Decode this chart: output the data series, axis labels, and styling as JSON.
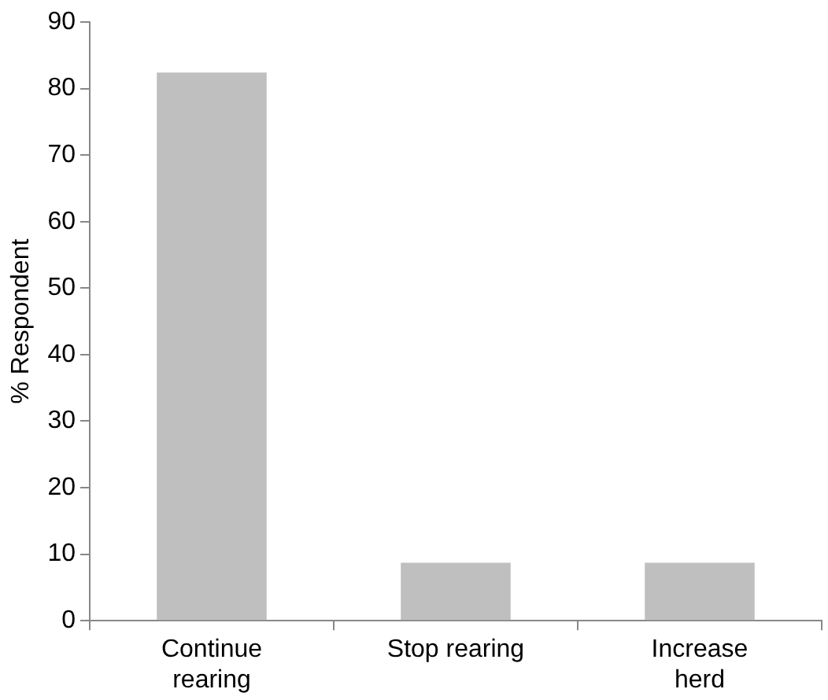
{
  "chart_data": {
    "type": "bar",
    "ylabel": "% Respondent",
    "categories": [
      "Continue rearing",
      "Stop rearing",
      "Increase herd"
    ],
    "values": [
      82.4,
      8.7,
      8.7
    ],
    "color": "#bfbfbf",
    "ylim": [
      0,
      90
    ],
    "yticks": [
      0,
      10,
      20,
      30,
      40,
      50,
      60,
      70,
      80,
      90
    ],
    "grid": false,
    "legend": false
  }
}
